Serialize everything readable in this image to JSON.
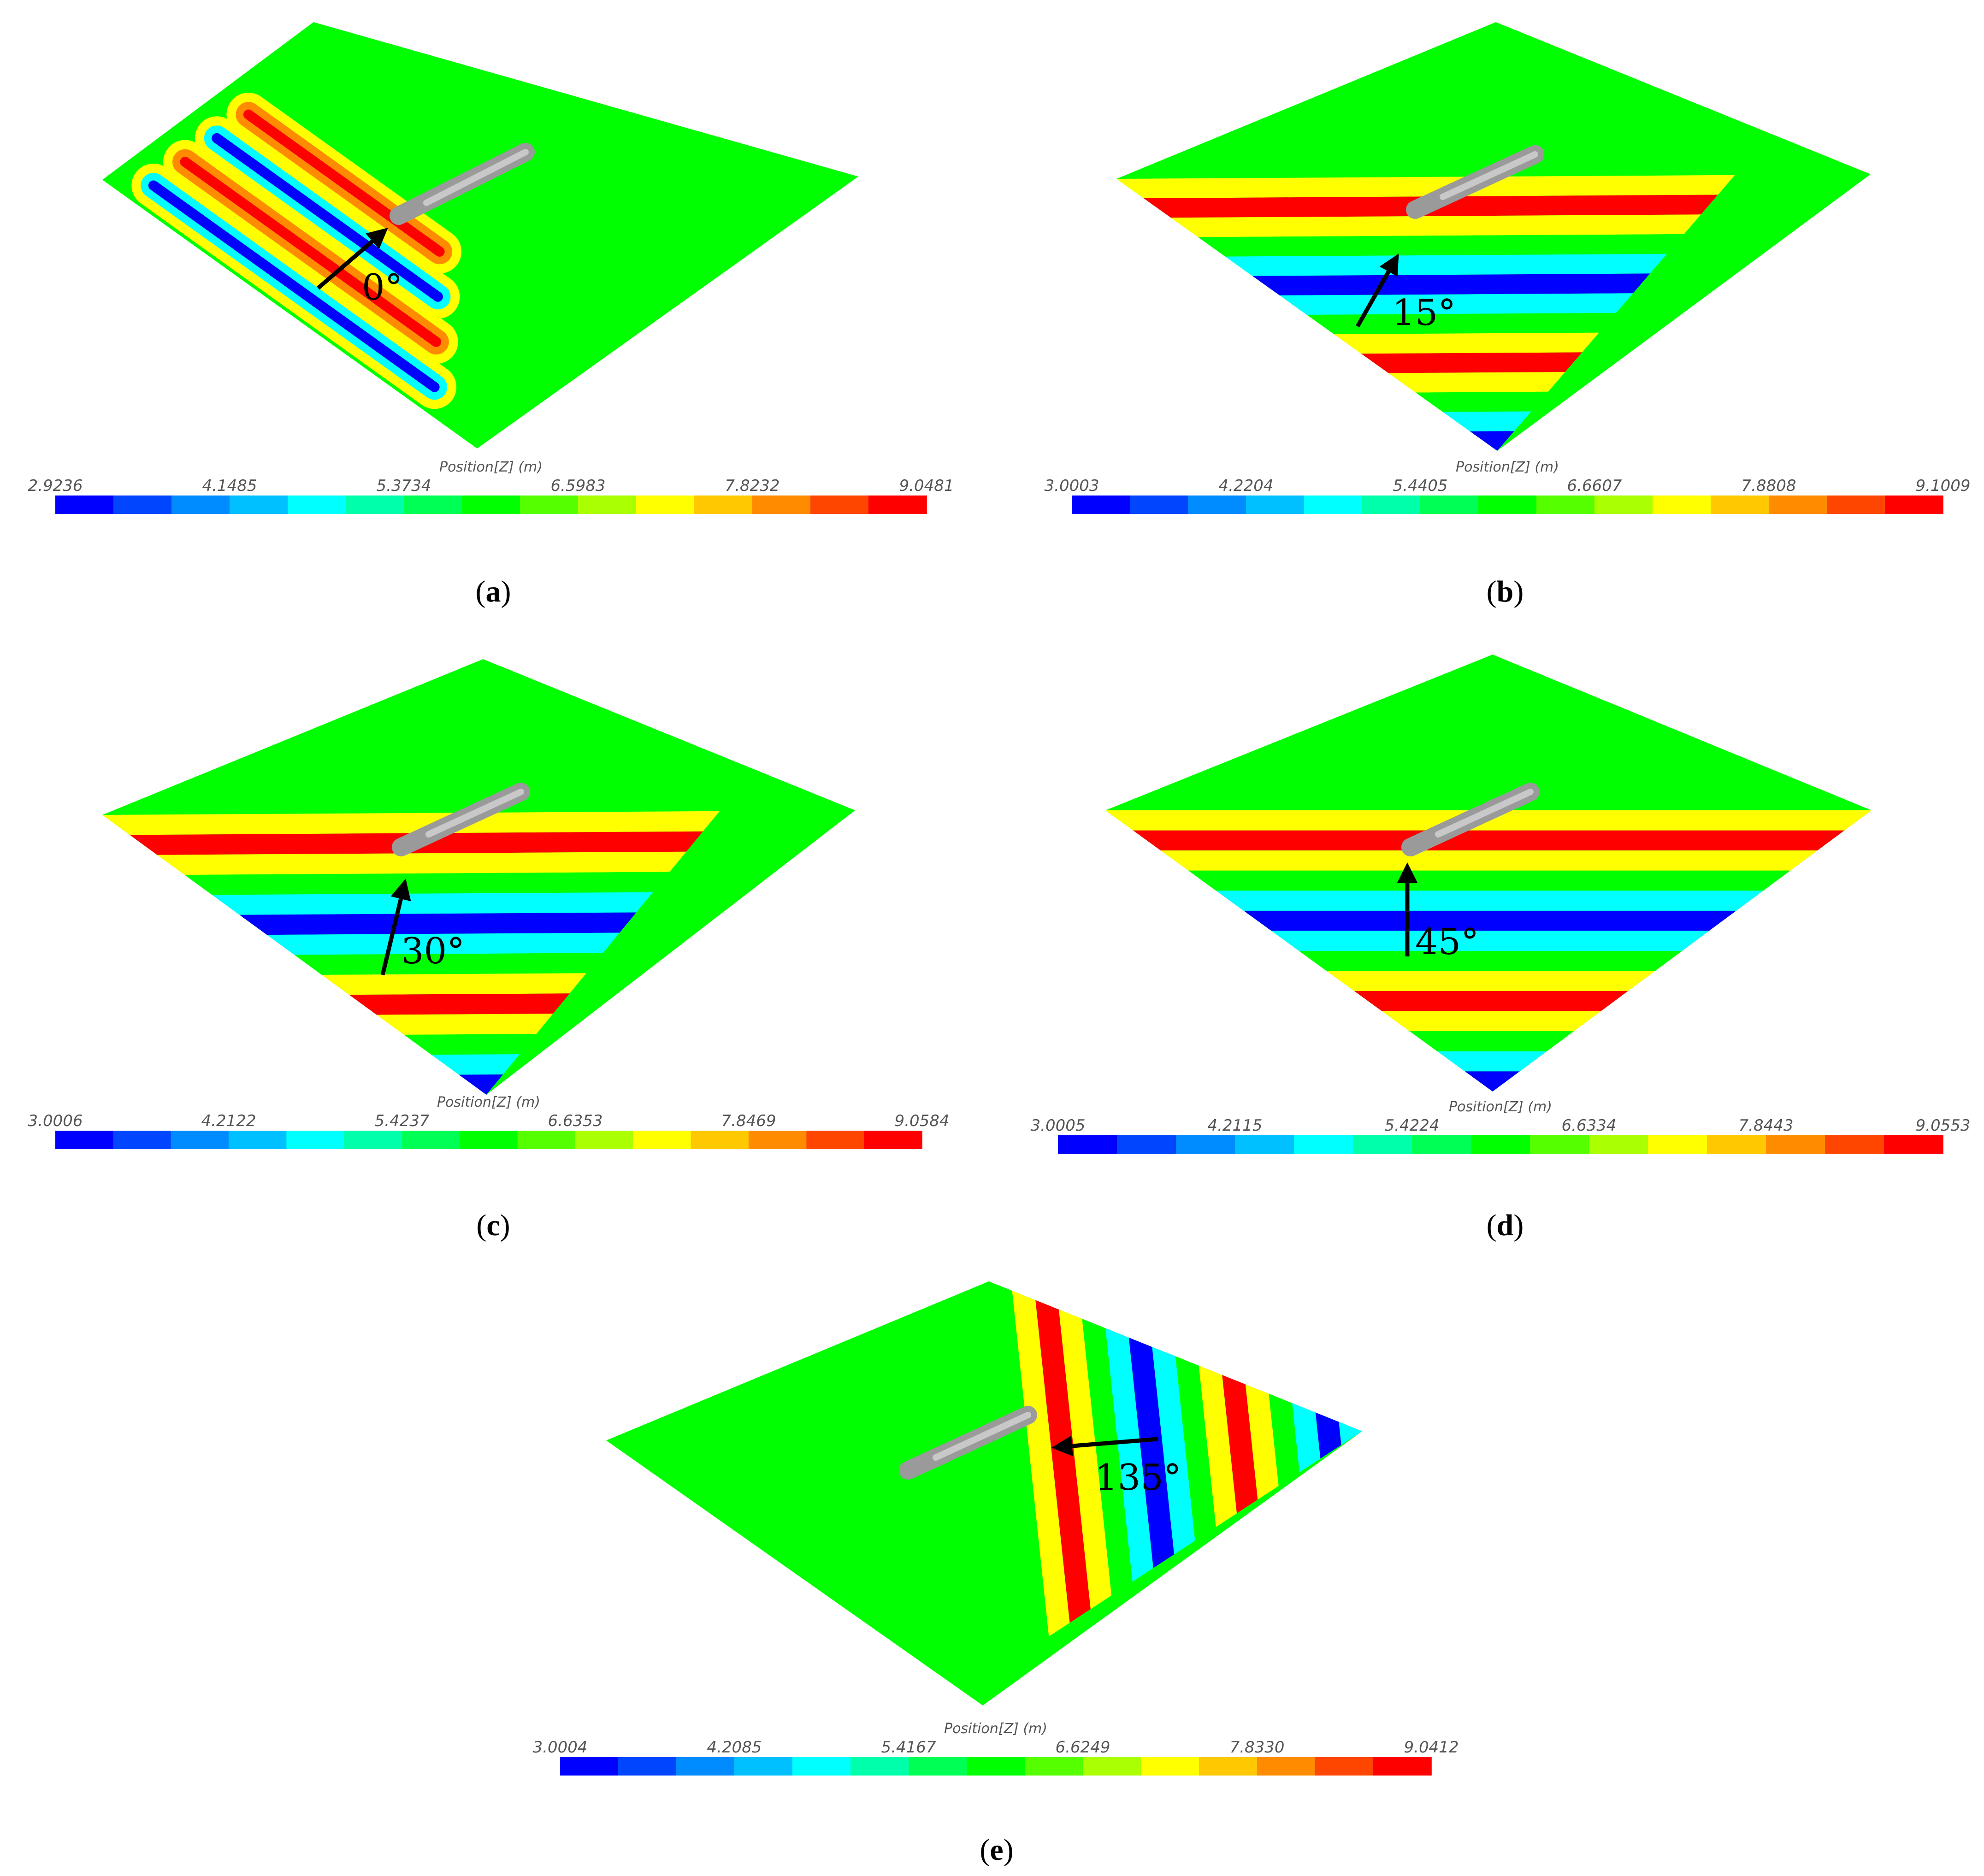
{
  "colorbar_colors": [
    "#0000ff",
    "#0046ff",
    "#008cff",
    "#00c0ff",
    "#00ffff",
    "#00ffaa",
    "#00ff55",
    "#00ff00",
    "#55ff00",
    "#aaff00",
    "#ffff00",
    "#ffc800",
    "#ff8c00",
    "#ff4600",
    "#ff0000"
  ],
  "plane_base_color": "#00ff00",
  "hull_color": "#9a9a9a",
  "panels": [
    {
      "id": "a",
      "caption_open": "(",
      "caption_letter": "a",
      "caption_close": ")",
      "wave_angle_label": "0°",
      "scale_title": "Position[Z] (m)",
      "scale_ticks": [
        "2.9236",
        "4.1485",
        "5.3734",
        "6.5983",
        "7.8232",
        "9.0481"
      ]
    },
    {
      "id": "b",
      "caption_open": "(",
      "caption_letter": "b",
      "caption_close": ")",
      "wave_angle_label": "15°",
      "scale_title": "Position[Z] (m)",
      "scale_ticks": [
        "3.0003",
        "4.2204",
        "5.4405",
        "6.6607",
        "7.8808",
        "9.1009"
      ]
    },
    {
      "id": "c",
      "caption_open": "(",
      "caption_letter": "c",
      "caption_close": ")",
      "wave_angle_label": "30°",
      "scale_title": "Position[Z] (m)",
      "scale_ticks": [
        "3.0006",
        "4.2122",
        "5.4237",
        "6.6353",
        "7.8469",
        "9.0584"
      ]
    },
    {
      "id": "d",
      "caption_open": "(",
      "caption_letter": "d",
      "caption_close": ")",
      "wave_angle_label": "45°",
      "scale_title": "Position[Z] (m)",
      "scale_ticks": [
        "3.0005",
        "4.2115",
        "5.4224",
        "6.6334",
        "7.8443",
        "9.0553"
      ]
    },
    {
      "id": "e",
      "caption_open": "(",
      "caption_letter": "e",
      "caption_close": ")",
      "wave_angle_label": "135°",
      "scale_title": "Position[Z] (m)",
      "scale_ticks": [
        "3.0004",
        "4.2085",
        "5.4167",
        "6.6249",
        "7.8330",
        "9.0412"
      ]
    }
  ]
}
